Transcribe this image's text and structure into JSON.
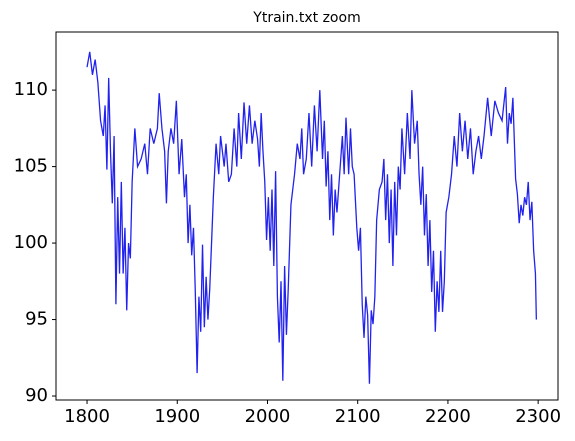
{
  "chart_data": {
    "type": "line",
    "title": "Ytrain.txt zoom",
    "x": [
      1800,
      1803,
      1806,
      1809,
      1812,
      1815,
      1818,
      1820,
      1822,
      1824,
      1826,
      1828,
      1830,
      1832,
      1834,
      1836,
      1838,
      1840,
      1842,
      1844,
      1846,
      1848,
      1850,
      1853,
      1856,
      1860,
      1864,
      1867,
      1870,
      1874,
      1878,
      1880,
      1883,
      1886,
      1888,
      1890,
      1893,
      1896,
      1899,
      1902,
      1905,
      1908,
      1910,
      1912,
      1914,
      1916,
      1918,
      1920,
      1922,
      1924,
      1926,
      1928,
      1930,
      1932,
      1934,
      1936,
      1940,
      1943,
      1946,
      1948,
      1952,
      1954,
      1957,
      1960,
      1963,
      1966,
      1968,
      1971,
      1974,
      1977,
      1980,
      1983,
      1986,
      1989,
      1991,
      1993,
      1995,
      1997,
      1999,
      2001,
      2003,
      2005,
      2007,
      2009,
      2011,
      2013,
      2015,
      2017,
      2019,
      2021,
      2023,
      2026,
      2030,
      2033,
      2036,
      2038,
      2040,
      2043,
      2046,
      2049,
      2052,
      2055,
      2058,
      2061,
      2063,
      2065,
      2067,
      2069,
      2071,
      2073,
      2075,
      2077,
      2080,
      2083,
      2085,
      2087,
      2090,
      2092,
      2094,
      2096,
      2099,
      2101,
      2103,
      2105,
      2107,
      2109,
      2111,
      2113,
      2115,
      2117,
      2119,
      2121,
      2124,
      2127,
      2129,
      2131,
      2133,
      2135,
      2137,
      2139,
      2141,
      2143,
      2145,
      2147,
      2149,
      2152,
      2155,
      2158,
      2160,
      2163,
      2166,
      2168,
      2170,
      2172,
      2174,
      2176,
      2178,
      2180,
      2182,
      2184,
      2186,
      2188,
      2190,
      2192,
      2194,
      2196,
      2198,
      2201,
      2204,
      2207,
      2210,
      2213,
      2216,
      2219,
      2222,
      2225,
      2228,
      2231,
      2234,
      2237,
      2240,
      2244,
      2248,
      2252,
      2256,
      2260,
      2264,
      2266,
      2268,
      2270,
      2272,
      2275,
      2277,
      2279,
      2281,
      2283,
      2285,
      2287,
      2289,
      2291,
      2293,
      2295,
      2297,
      2298
    ],
    "series": [
      {
        "name": "Ytrain",
        "color": "#2222ee",
        "values": [
          111.5,
          112.5,
          111,
          112,
          110.5,
          108,
          107,
          109,
          104.8,
          110.8,
          106,
          102.6,
          107,
          96,
          103,
          98,
          104,
          98,
          101,
          95.6,
          100,
          99,
          104,
          107.5,
          105,
          105.5,
          106.5,
          104.5,
          107.5,
          106.5,
          107.5,
          109.8,
          107.5,
          106,
          102.6,
          106,
          107.5,
          106.5,
          109.3,
          104.5,
          106.8,
          103,
          104.5,
          100,
          102.5,
          99.2,
          101,
          96.8,
          91.5,
          96.5,
          94.2,
          99.9,
          94.5,
          97.8,
          95,
          97,
          103,
          106.5,
          104.5,
          107,
          105,
          106.5,
          104,
          104.5,
          107.5,
          105,
          108.5,
          105.5,
          109.2,
          106.5,
          109,
          106.5,
          108,
          106.8,
          105,
          108.5,
          106,
          104,
          100.2,
          103,
          99.5,
          103.5,
          98.5,
          104.7,
          96.5,
          93.5,
          97.5,
          91,
          98.5,
          94,
          97,
          102.5,
          104.5,
          106.5,
          105.5,
          107.5,
          104.5,
          105.5,
          108.5,
          105,
          109,
          106,
          110,
          105.5,
          108,
          103.7,
          106,
          101.5,
          104.5,
          100.5,
          103.5,
          102,
          104.5,
          107,
          104.5,
          108.2,
          104.5,
          107.5,
          105,
          104.5,
          101,
          99.5,
          101,
          96,
          93.8,
          96.5,
          95.3,
          90.8,
          95.6,
          94.7,
          96.5,
          101.5,
          103.5,
          104,
          105.5,
          101.5,
          104.5,
          100,
          103.5,
          98.5,
          104,
          100.5,
          105,
          103.5,
          107.5,
          104.5,
          108.5,
          105.5,
          110,
          106.5,
          108,
          104.5,
          102.5,
          105,
          100.5,
          103.2,
          98.5,
          101.5,
          96.8,
          99.5,
          94.2,
          97.5,
          95.5,
          99.5,
          95.5,
          97.5,
          102,
          103,
          104.5,
          107,
          105,
          108.5,
          106,
          108,
          105.5,
          107.5,
          104.5,
          106,
          107,
          105.5,
          107,
          109.5,
          107,
          109.3,
          108.5,
          108,
          110.2,
          106.5,
          108.5,
          107.8,
          109.5,
          104.2,
          103.2,
          101.3,
          102.5,
          101.8,
          103,
          102.5,
          104,
          101.5,
          102.7,
          99.5,
          98,
          95
        ]
      }
    ],
    "xlim": [
      1765.6,
      2322
    ],
    "ylim": [
      89.74,
      113.8
    ],
    "xticks": [
      1800,
      1900,
      2000,
      2100,
      2200,
      2300
    ],
    "yticks": [
      90,
      95,
      100,
      105,
      110
    ]
  }
}
